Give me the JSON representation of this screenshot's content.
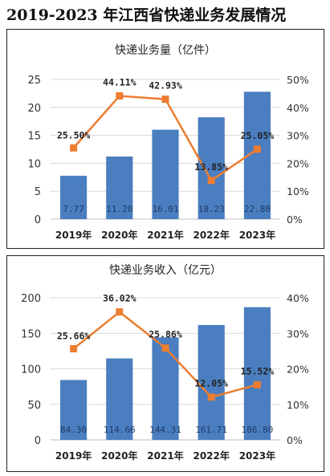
{
  "page": {
    "title": "2019-2023 年江西省快递业务发展情况"
  },
  "chart_data": [
    {
      "type": "bar",
      "title": "快递业务量（亿件）",
      "categories": [
        "2019年",
        "2020年",
        "2021年",
        "2022年",
        "2023年"
      ],
      "series": [
        {
          "values": [
            7.77,
            11.2,
            16.01,
            18.23,
            22.8
          ],
          "value_labels": [
            "7.77",
            "11.20",
            "16.01",
            "18.23",
            "22.80"
          ],
          "color": "#4a7ec0",
          "axis": "left"
        },
        {
          "type": "line",
          "values": [
            25.5,
            44.11,
            42.93,
            13.85,
            25.05
          ],
          "value_labels": [
            "25.50%",
            "44.11%",
            "42.93%",
            "13.85%",
            "25.05%"
          ],
          "color": "#ed7d31",
          "axis": "right"
        }
      ],
      "ylim": [
        0,
        25
      ],
      "yticks": [
        "0",
        "5",
        "10",
        "15",
        "20",
        "25"
      ],
      "y2lim": [
        0,
        50
      ],
      "y2ticks": [
        "0%",
        "10%",
        "20%",
        "30%",
        "40%",
        "50%"
      ],
      "grid": true
    },
    {
      "type": "bar",
      "title": "快递业务收入（亿元）",
      "categories": [
        "2019年",
        "2020年",
        "2021年",
        "2022年",
        "2023年"
      ],
      "series": [
        {
          "values": [
            84.3,
            114.66,
            144.31,
            161.71,
            186.8
          ],
          "value_labels": [
            "84.30",
            "114.66",
            "144.31",
            "161.71",
            "186.80"
          ],
          "color": "#4a7ec0",
          "axis": "left"
        },
        {
          "type": "line",
          "values": [
            25.66,
            36.02,
            25.86,
            12.05,
            15.52
          ],
          "value_labels": [
            "25.66%",
            "36.02%",
            "25.86%",
            "12.05%",
            "15.52%"
          ],
          "color": "#ed7d31",
          "axis": "right"
        }
      ],
      "ylim": [
        0,
        200
      ],
      "yticks": [
        "0",
        "50",
        "100",
        "150",
        "200"
      ],
      "y2lim": [
        0,
        40
      ],
      "y2ticks": [
        "0%",
        "10%",
        "20%",
        "30%",
        "40%"
      ],
      "grid": true
    }
  ]
}
